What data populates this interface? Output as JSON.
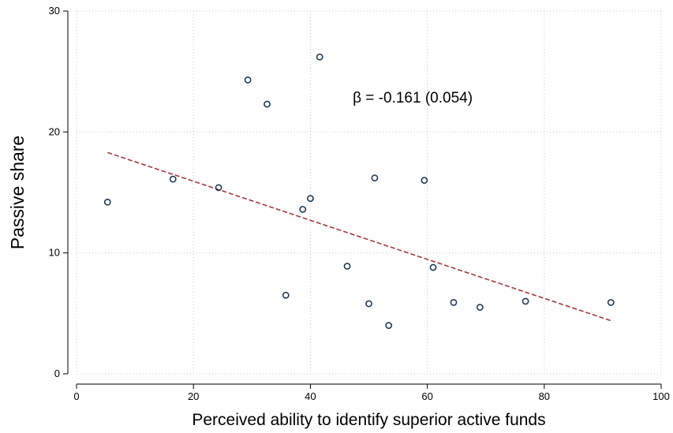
{
  "chart_data": {
    "type": "scatter",
    "xlabel": "Perceived ability to identify superior active funds",
    "ylabel": "Passive share",
    "xlim": [
      0,
      100
    ],
    "ylim": [
      0,
      30
    ],
    "x_ticks": [
      0,
      20,
      40,
      60,
      80,
      100
    ],
    "y_ticks": [
      0,
      10,
      20,
      30
    ],
    "grid": true,
    "points": [
      {
        "x": 5.3,
        "y": 14.2
      },
      {
        "x": 16.5,
        "y": 16.1
      },
      {
        "x": 24.3,
        "y": 15.4
      },
      {
        "x": 29.3,
        "y": 24.3
      },
      {
        "x": 32.6,
        "y": 22.3
      },
      {
        "x": 35.8,
        "y": 6.5
      },
      {
        "x": 38.7,
        "y": 13.6
      },
      {
        "x": 40.0,
        "y": 14.5
      },
      {
        "x": 41.6,
        "y": 26.2
      },
      {
        "x": 46.3,
        "y": 8.9
      },
      {
        "x": 50.0,
        "y": 5.8
      },
      {
        "x": 51.0,
        "y": 16.2
      },
      {
        "x": 53.4,
        "y": 4.0
      },
      {
        "x": 59.5,
        "y": 16.0
      },
      {
        "x": 61.0,
        "y": 8.8
      },
      {
        "x": 64.5,
        "y": 5.9
      },
      {
        "x": 69.0,
        "y": 5.5
      },
      {
        "x": 76.8,
        "y": 6.0
      },
      {
        "x": 91.4,
        "y": 5.9
      }
    ],
    "fit_line": {
      "x": [
        5.3,
        91.4
      ],
      "y": [
        18.3,
        4.4
      ]
    },
    "annotation": {
      "text": "β = -0.161 (0.054)",
      "x": 57.5,
      "y": 22.9
    },
    "colors": {
      "points": "#1f3b57",
      "fit_line": "#a0393f",
      "grid": "#c9c9c9"
    }
  }
}
